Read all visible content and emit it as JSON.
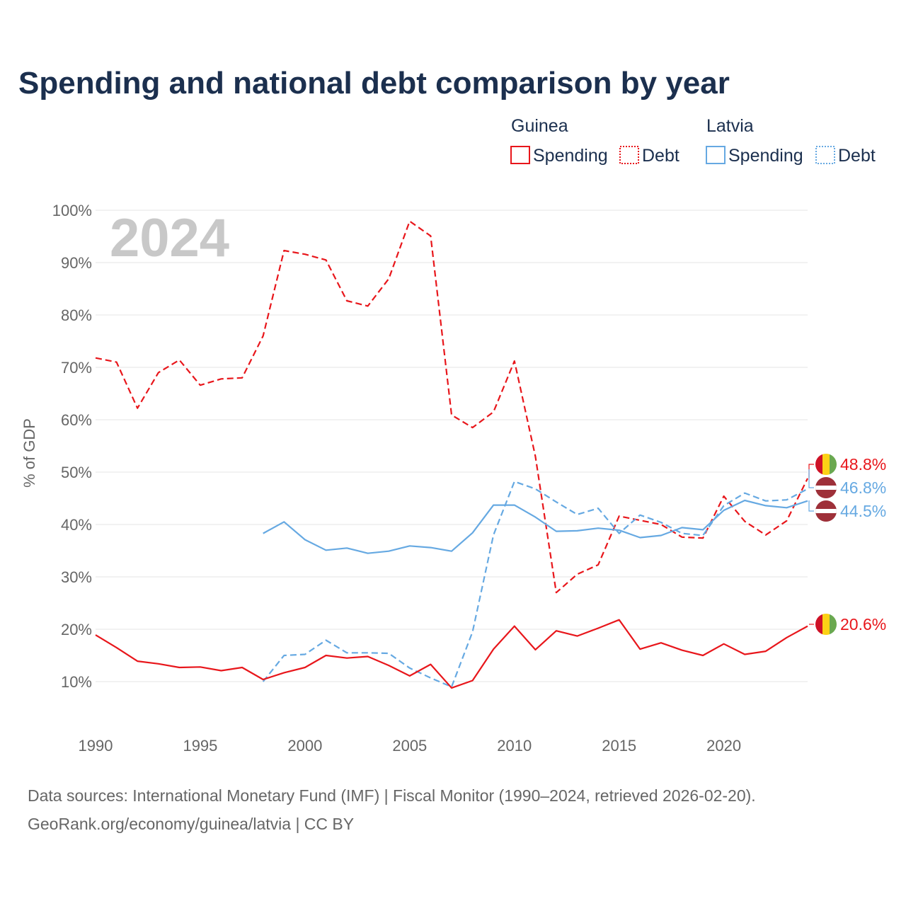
{
  "title": "Spending and national debt comparison by year",
  "year_label": "2024",
  "legend": {
    "groups": [
      {
        "country": "Guinea",
        "color": "#e8161b",
        "items": [
          {
            "label": "Spending",
            "style": "solid"
          },
          {
            "label": "Debt",
            "style": "dotted"
          }
        ]
      },
      {
        "country": "Latvia",
        "color": "#66a9e2",
        "items": [
          {
            "label": "Spending",
            "style": "solid"
          },
          {
            "label": "Debt",
            "style": "dotted"
          }
        ]
      }
    ]
  },
  "end_labels": {
    "guinea_debt": "48.8%",
    "latvia_debt": "46.8%",
    "latvia_spending": "44.5%",
    "guinea_spending": "20.6%"
  },
  "source": {
    "line1": "Data sources: International Monetary Fund (IMF) | Fiscal Monitor (1990–2024, retrieved 2026-02-20).",
    "line2": "GeoRank.org/economy/guinea/latvia | CC BY"
  },
  "chart_data": {
    "type": "line",
    "title": "Spending and national debt comparison by year",
    "xlabel": "",
    "ylabel": "% of GDP",
    "xlim": [
      1990,
      2024
    ],
    "ylim": [
      0,
      100
    ],
    "x_ticks": [
      1990,
      1995,
      2000,
      2005,
      2010,
      2015,
      2020
    ],
    "y_ticks": [
      10,
      20,
      30,
      40,
      50,
      60,
      70,
      80,
      90,
      100
    ],
    "y_tick_labels": [
      "10%",
      "20%",
      "30%",
      "40%",
      "50%",
      "60%",
      "70%",
      "80%",
      "90%",
      "100%"
    ],
    "grid": true,
    "legend_position": "top-right",
    "series": [
      {
        "name": "Guinea Debt",
        "country": "Guinea",
        "metric": "Debt",
        "color": "#e8161b",
        "dash": "dashed",
        "x": [
          1990,
          1991,
          1992,
          1993,
          1994,
          1995,
          1996,
          1997,
          1998,
          1999,
          2000,
          2001,
          2002,
          2003,
          2004,
          2005,
          2006,
          2007,
          2008,
          2009,
          2010,
          2011,
          2012,
          2013,
          2014,
          2015,
          2016,
          2017,
          2018,
          2019,
          2020,
          2021,
          2022,
          2023,
          2024
        ],
        "values": [
          71.8,
          71.0,
          62.2,
          69.0,
          71.4,
          66.6,
          67.8,
          68.0,
          76.0,
          92.3,
          91.6,
          90.5,
          82.7,
          81.7,
          86.9,
          97.9,
          95.1,
          60.9,
          58.5,
          61.5,
          71.2,
          53.0,
          27.0,
          30.5,
          32.3,
          41.6,
          40.8,
          40.0,
          37.6,
          37.4,
          45.4,
          40.6,
          38.0,
          40.7,
          48.8
        ]
      },
      {
        "name": "Latvia Spending",
        "country": "Latvia",
        "metric": "Spending",
        "color": "#66a9e2",
        "dash": "solid",
        "x": [
          1998,
          1999,
          2000,
          2001,
          2002,
          2003,
          2004,
          2005,
          2006,
          2007,
          2008,
          2009,
          2010,
          2011,
          2012,
          2013,
          2014,
          2015,
          2016,
          2017,
          2018,
          2019,
          2020,
          2021,
          2022,
          2023,
          2024
        ],
        "values": [
          38.3,
          40.5,
          37.1,
          35.1,
          35.5,
          34.5,
          34.9,
          35.9,
          35.6,
          34.9,
          38.4,
          43.7,
          43.7,
          41.4,
          38.7,
          38.8,
          39.3,
          38.9,
          37.5,
          37.9,
          39.4,
          39.0,
          42.7,
          44.6,
          43.6,
          43.2,
          44.5
        ]
      },
      {
        "name": "Latvia Debt",
        "country": "Latvia",
        "metric": "Debt",
        "color": "#66a9e2",
        "dash": "dashed",
        "x": [
          1998,
          1999,
          2000,
          2001,
          2002,
          2003,
          2004,
          2005,
          2006,
          2007,
          2008,
          2009,
          2010,
          2011,
          2012,
          2013,
          2014,
          2015,
          2016,
          2017,
          2018,
          2019,
          2020,
          2021,
          2022,
          2023,
          2024
        ],
        "values": [
          10.0,
          15.0,
          15.2,
          17.9,
          15.5,
          15.5,
          15.4,
          12.6,
          10.7,
          9.0,
          19.5,
          38.0,
          48.2,
          46.8,
          44.3,
          41.9,
          43.1,
          38.3,
          41.8,
          40.4,
          38.3,
          37.9,
          43.6,
          46.0,
          44.5,
          44.7,
          46.8
        ]
      },
      {
        "name": "Guinea Spending",
        "country": "Guinea",
        "metric": "Spending",
        "color": "#e8161b",
        "dash": "solid",
        "x": [
          1990,
          1991,
          1992,
          1993,
          1994,
          1995,
          1996,
          1997,
          1998,
          1999,
          2000,
          2001,
          2002,
          2003,
          2004,
          2005,
          2006,
          2007,
          2008,
          2009,
          2010,
          2011,
          2012,
          2013,
          2014,
          2015,
          2016,
          2017,
          2018,
          2019,
          2020,
          2021,
          2022,
          2023,
          2024
        ],
        "values": [
          18.9,
          16.5,
          13.9,
          13.4,
          12.7,
          12.8,
          12.1,
          12.7,
          10.4,
          11.7,
          12.7,
          15.0,
          14.5,
          14.8,
          13.1,
          11.1,
          13.3,
          8.8,
          10.2,
          16.2,
          20.6,
          16.1,
          19.7,
          18.7,
          20.2,
          21.8,
          16.2,
          17.4,
          16.0,
          15.0,
          17.2,
          15.2,
          15.8,
          18.4,
          20.6
        ]
      }
    ]
  }
}
